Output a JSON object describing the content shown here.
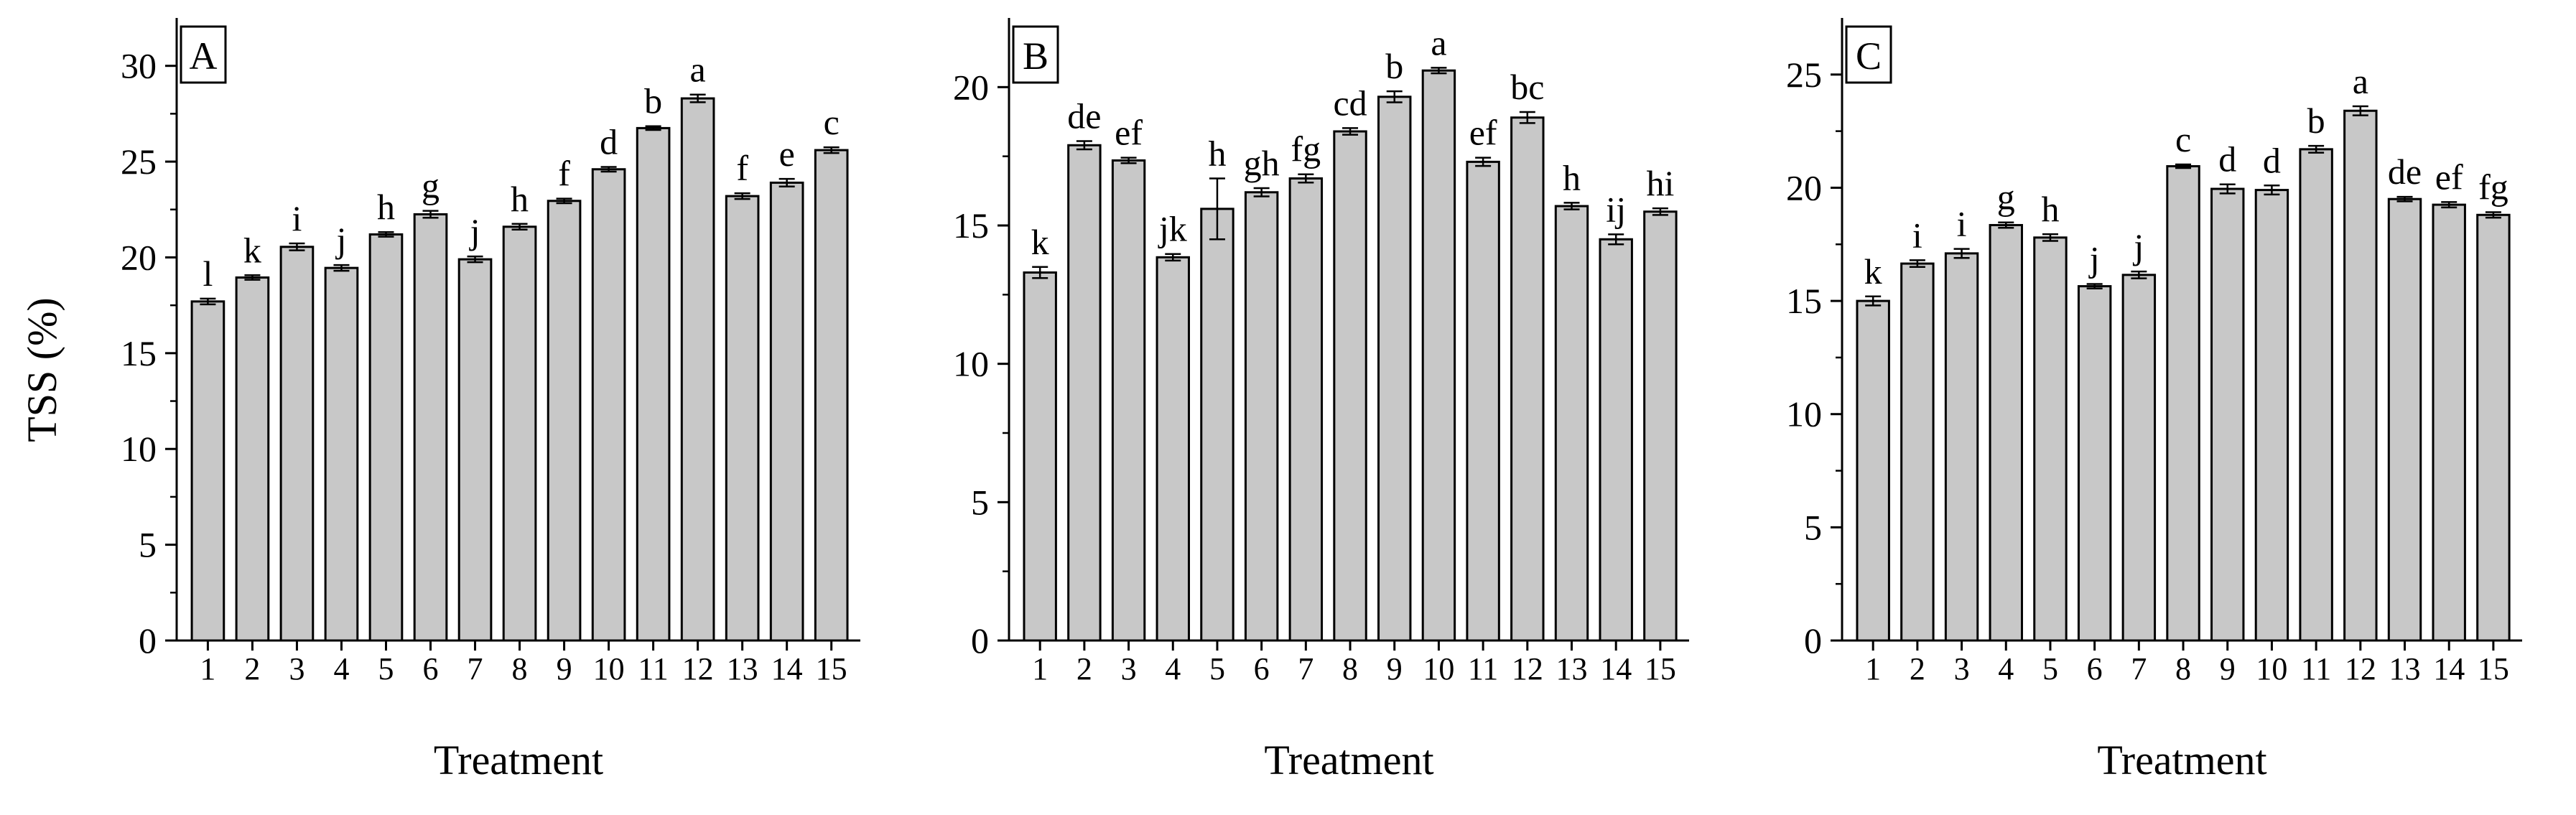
{
  "figure": {
    "ylabel": "TSS (%)",
    "colors": {
      "bar_fill": "#c8c8c8",
      "bar_stroke": "#000000",
      "axis": "#000000"
    }
  },
  "chart_data": [
    {
      "type": "bar",
      "panel_label": "A",
      "xlabel": "Treatment",
      "ylabel": "TSS (%)",
      "ylim": [
        0,
        32.5
      ],
      "yticks": [
        0,
        5,
        10,
        15,
        20,
        25,
        30
      ],
      "categories": [
        "1",
        "2",
        "3",
        "4",
        "5",
        "6",
        "7",
        "8",
        "9",
        "10",
        "11",
        "12",
        "13",
        "14",
        "15"
      ],
      "values": [
        17.7,
        18.95,
        20.55,
        19.45,
        21.2,
        22.25,
        19.9,
        21.6,
        22.95,
        24.6,
        26.75,
        28.3,
        23.2,
        23.9,
        25.6
      ],
      "errors": [
        0.15,
        0.12,
        0.18,
        0.15,
        0.12,
        0.18,
        0.15,
        0.15,
        0.12,
        0.12,
        0.1,
        0.2,
        0.15,
        0.2,
        0.15
      ],
      "annotations": [
        "l",
        "k",
        "i",
        "j",
        "h",
        "g",
        "j",
        "h",
        "f",
        "d",
        "b",
        "a",
        "f",
        "e",
        "c"
      ]
    },
    {
      "type": "bar",
      "panel_label": "B",
      "xlabel": "Treatment",
      "ylabel": "",
      "ylim": [
        0,
        22.5
      ],
      "yticks": [
        0,
        5,
        10,
        15,
        20
      ],
      "categories": [
        "1",
        "2",
        "3",
        "4",
        "5",
        "6",
        "7",
        "8",
        "9",
        "10",
        "11",
        "12",
        "13",
        "14",
        "15"
      ],
      "values": [
        13.3,
        17.9,
        17.35,
        13.85,
        15.6,
        16.2,
        16.7,
        18.4,
        19.65,
        20.6,
        17.3,
        18.9,
        15.7,
        14.5,
        15.5
      ],
      "errors": [
        0.2,
        0.15,
        0.1,
        0.12,
        1.1,
        0.15,
        0.15,
        0.12,
        0.2,
        0.1,
        0.15,
        0.2,
        0.12,
        0.18,
        0.12
      ],
      "annotations": [
        "k",
        "de",
        "ef",
        "jk",
        "h",
        "gh",
        "fg",
        "cd",
        "b",
        "a",
        "ef",
        "bc",
        "h",
        "ij",
        "hi"
      ]
    },
    {
      "type": "bar",
      "panel_label": "C",
      "xlabel": "Treatment",
      "ylabel": "",
      "ylim": [
        0,
        27.5
      ],
      "yticks": [
        0,
        5,
        10,
        15,
        20,
        25
      ],
      "categories": [
        "1",
        "2",
        "3",
        "4",
        "5",
        "6",
        "7",
        "8",
        "9",
        "10",
        "11",
        "12",
        "13",
        "14",
        "15"
      ],
      "values": [
        15.0,
        16.65,
        17.1,
        18.35,
        17.8,
        15.65,
        16.15,
        20.95,
        19.95,
        19.9,
        21.7,
        23.4,
        19.5,
        19.25,
        18.8
      ],
      "errors": [
        0.2,
        0.15,
        0.2,
        0.12,
        0.15,
        0.1,
        0.15,
        0.08,
        0.2,
        0.2,
        0.15,
        0.2,
        0.1,
        0.12,
        0.12
      ],
      "annotations": [
        "k",
        "i",
        "i",
        "g",
        "h",
        "j",
        "j",
        "c",
        "d",
        "d",
        "b",
        "a",
        "de",
        "ef",
        "fg"
      ]
    }
  ]
}
